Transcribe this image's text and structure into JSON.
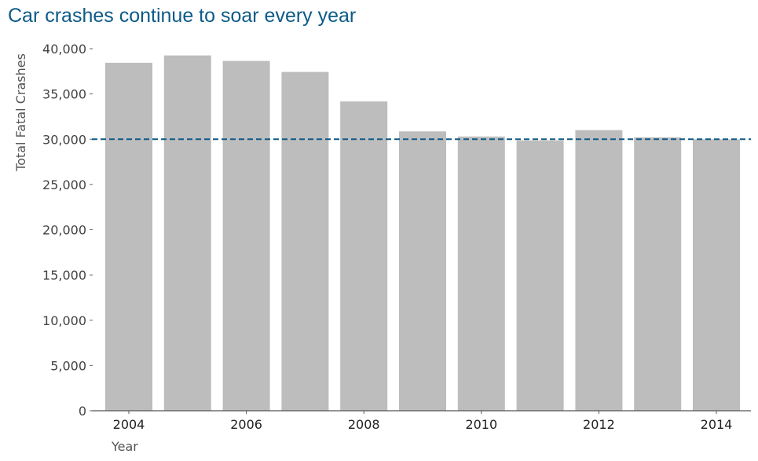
{
  "chart_data": {
    "type": "bar",
    "title": "Car crashes continue to soar every year",
    "xlabel": "Year",
    "ylabel": "Total Fatal Crashes",
    "categories": [
      "2004",
      "2005",
      "2006",
      "2007",
      "2008",
      "2009",
      "2010",
      "2011",
      "2012",
      "2013",
      "2014"
    ],
    "values": [
      38444,
      39252,
      38648,
      37435,
      34172,
      30862,
      30296,
      29867,
      31006,
      30202,
      29989
    ],
    "ylim": [
      0,
      40000
    ],
    "y_ticks": [
      0,
      5000,
      10000,
      15000,
      20000,
      25000,
      30000,
      35000,
      40000
    ],
    "y_tick_labels": [
      "0",
      "5,000",
      "10,000",
      "15,000",
      "20,000",
      "25,000",
      "30,000",
      "35,000",
      "40,000"
    ],
    "x_tick_labels": [
      "2004",
      "2006",
      "2008",
      "2010",
      "2012",
      "2014"
    ],
    "reference_line": {
      "value": 30000,
      "style": "dashed"
    },
    "grid": false,
    "colors": {
      "bar": "#bdbdbd",
      "reference_line": "#0e5a87",
      "title": "#0e5a87",
      "axis": "#555555"
    }
  }
}
